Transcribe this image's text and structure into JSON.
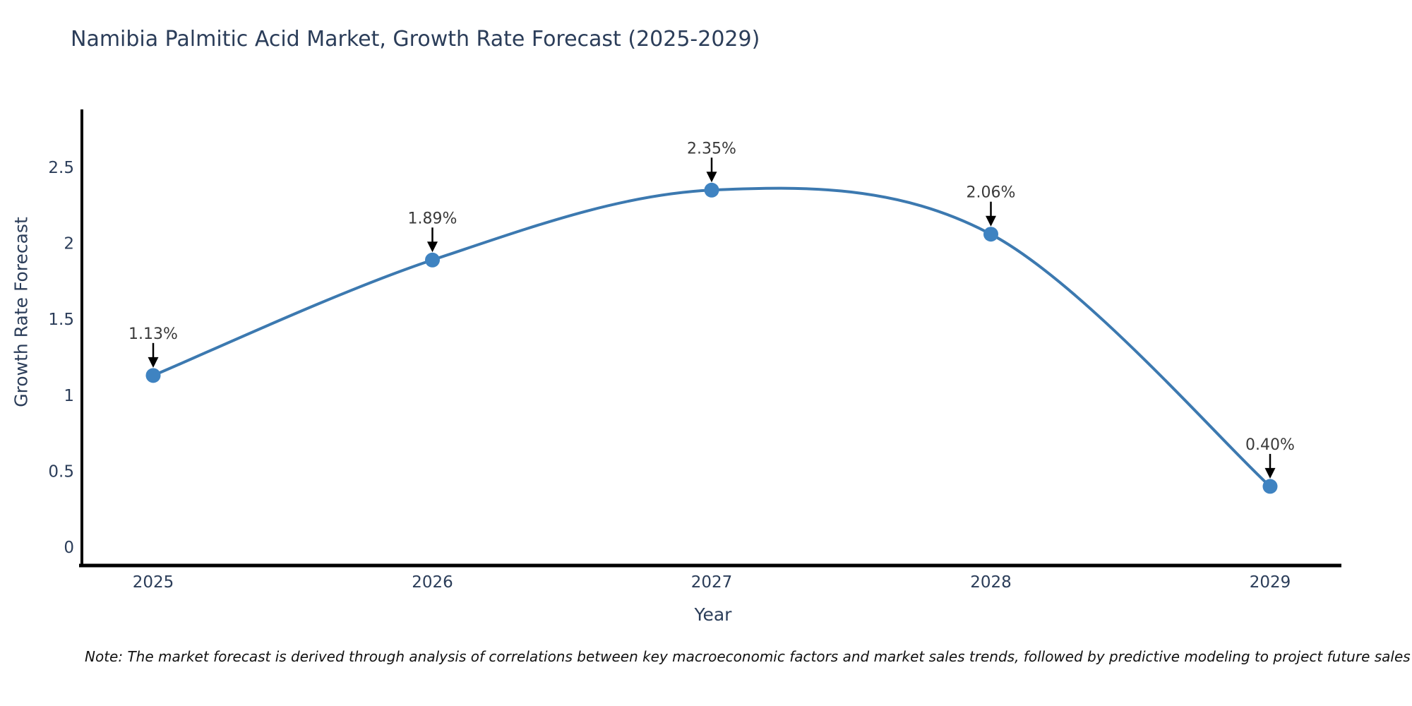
{
  "title": "Namibia Palmitic Acid Market, Growth Rate Forecast (2025-2029)",
  "note": "Note: The market forecast is derived through analysis of correlations between key macroeconomic factors and market sales trends, followed by predictive modeling to project future sales",
  "chart_data": {
    "type": "line",
    "title": "Namibia Palmitic Acid Market, Growth Rate Forecast (2025-2029)",
    "xlabel": "Year",
    "ylabel": "Growth Rate Forecast",
    "x_categories": [
      "2025",
      "2026",
      "2027",
      "2028",
      "2029"
    ],
    "series": [
      {
        "name": "Growth Rate Forecast",
        "values": [
          1.13,
          1.89,
          2.35,
          2.06,
          0.4
        ]
      }
    ],
    "point_labels": [
      "1.13%",
      "1.89%",
      "2.35%",
      "2.06%",
      "0.40%"
    ],
    "ytick_values": [
      0,
      0.5,
      1,
      1.5,
      2,
      2.5
    ],
    "ytick_labels": [
      "0",
      "0.5",
      "1",
      "1.5",
      "2",
      "2.5"
    ],
    "ylim": [
      0,
      2.75
    ],
    "line_shape": "spline",
    "grid": false,
    "legend_position": "none",
    "colors": {
      "line": "#3c79b0",
      "marker": "#3f83c1",
      "axis": "#000000",
      "annotation_arrow": "#000000",
      "annotation_text": "#3a3a3a",
      "text": "#2b3d59"
    }
  }
}
